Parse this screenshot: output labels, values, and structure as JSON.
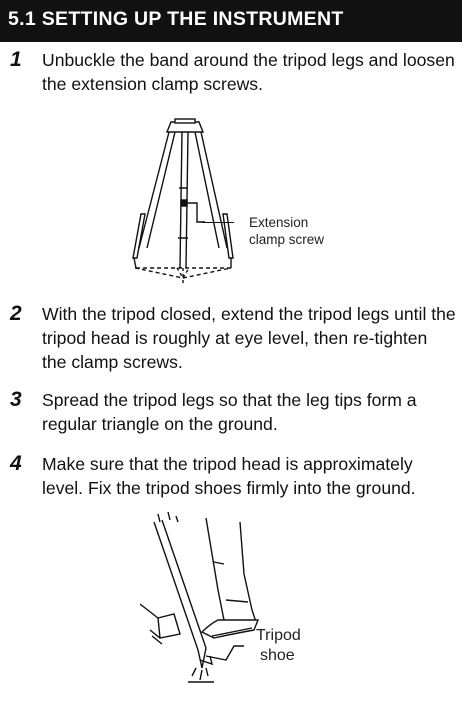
{
  "section": {
    "title": "5.1  SETTING UP THE INSTRUMENT"
  },
  "steps": [
    {
      "num": "1",
      "text": "Unbuckle the band around the tripod legs and loosen the extension clamp screws."
    },
    {
      "num": "2",
      "text": "With the tripod closed, extend the tripod legs until the tripod head is roughly at eye level, then re-tighten the clamp screws."
    },
    {
      "num": "3",
      "text": "Spread the tripod legs so that the leg tips form a regular triangle on the ground."
    },
    {
      "num": "4",
      "text": "Make sure that the tripod head is approximately level. Fix the tripod shoes firmly into the ground."
    }
  ],
  "figures": {
    "tripod": {
      "callout_line1": "Extension",
      "callout_line2": "clamp screw"
    },
    "shoe": {
      "callout_line1": "Tripod",
      "callout_line2": "shoe"
    }
  }
}
